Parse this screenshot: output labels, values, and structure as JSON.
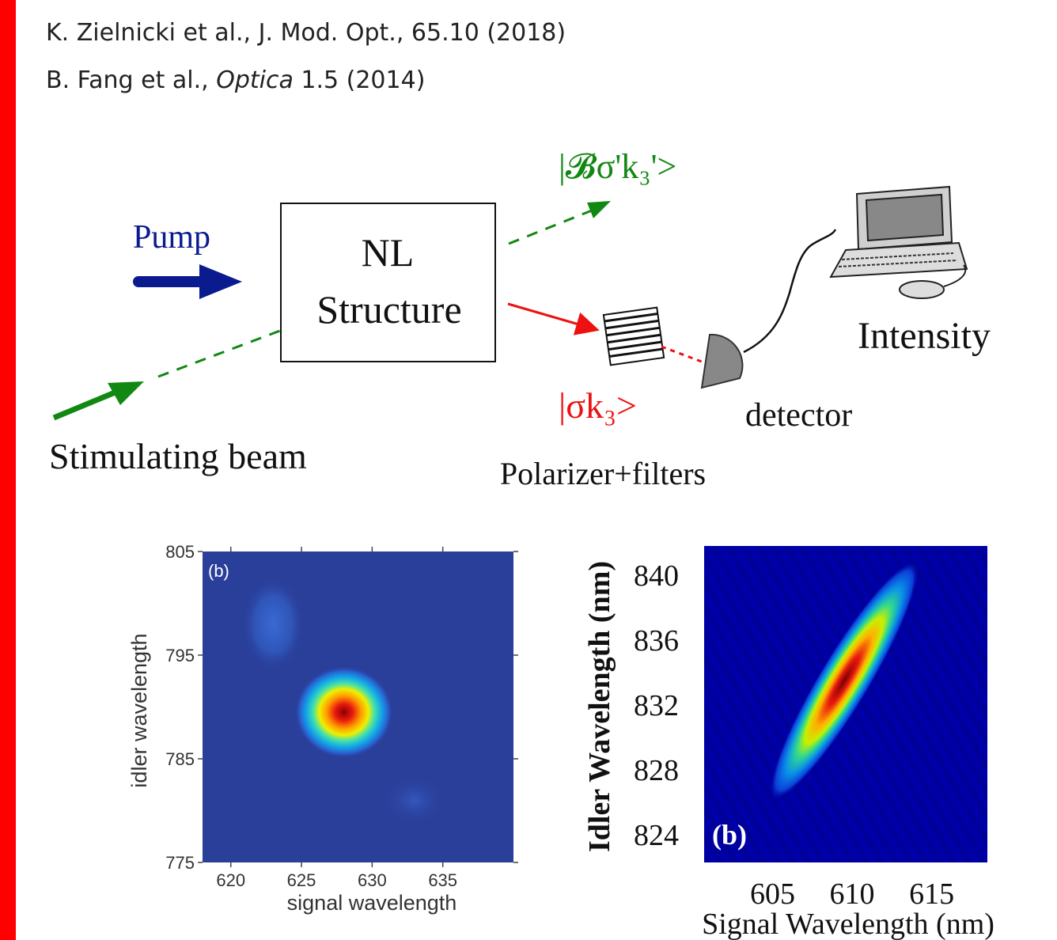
{
  "references": [
    {
      "text_before": "K. Zielnicki et al., J. Mod. Opt., 65.10 (2018)",
      "italic": "",
      "text_after": ""
    },
    {
      "text_before": "B. Fang et al., ",
      "italic": "Optica",
      "text_after": " 1.5 (2014)"
    }
  ],
  "diagram": {
    "pump_label": "Pump",
    "box_line1": "NL",
    "box_line2": "Structure",
    "stimulating_label": "Stimulating beam",
    "state_green": "|𝓑σ'k₃'>",
    "state_red": "|σk₃>",
    "polarizer_label": "Polarizer+filters",
    "detector_label": "detector",
    "intensity_label": "Intensity",
    "colors": {
      "pump": "#0a1a8f",
      "stimulating": "#118811",
      "signal": "#ee1111"
    },
    "icons": [
      "computer-icon",
      "detector-icon",
      "polarizer-icon"
    ]
  },
  "chart_data": [
    {
      "type": "heatmap",
      "panel_label": "(b)",
      "xlabel": "signal wavelength",
      "ylabel": "idler wavelength",
      "xticks": [
        "620",
        "625",
        "630",
        "635"
      ],
      "yticks": [
        "805",
        "795",
        "785",
        "775"
      ],
      "xlim": [
        618,
        640
      ],
      "ylim": [
        775,
        805
      ],
      "peaks": [
        {
          "x": 628,
          "y": 789.5,
          "level": "max"
        },
        {
          "x": 623,
          "y": 798,
          "level": "low"
        },
        {
          "x": 633,
          "y": 781,
          "level": "low"
        }
      ],
      "colormap": "jet"
    },
    {
      "type": "heatmap",
      "panel_label": "(b)",
      "xlabel": "Signal Wavelength (nm)",
      "ylabel": "Idler Wavelength (nm)",
      "xticks": [
        "605",
        "610",
        "615"
      ],
      "yticks": [
        "840",
        "836",
        "832",
        "828",
        "824"
      ],
      "xlim": [
        600.7,
        618.5
      ],
      "ylim": [
        822.3,
        841.8
      ],
      "peaks": [
        {
          "x": 609.5,
          "y": 833.5,
          "level": "max"
        }
      ],
      "colormap": "jet"
    }
  ]
}
